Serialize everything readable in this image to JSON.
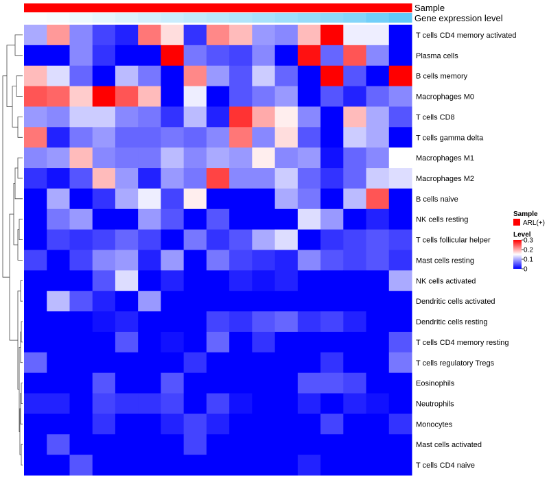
{
  "chart_data": {
    "type": "heatmap",
    "title": "",
    "annotations": [
      {
        "name": "Sample",
        "kind": "categorical"
      },
      {
        "name": "Gene expression level",
        "kind": "gradient"
      }
    ],
    "colors": {
      "low": "#0000ff",
      "mid": "#ffffff",
      "high": "#ff0000",
      "sample": "#ff0000",
      "gene_expr_start": "#ffffff",
      "gene_expr_end": "#4fc3f7",
      "dendrogram": "#444444"
    },
    "rows": [
      "T cells CD4 memory activated",
      "Plasma cells",
      "B cells memory",
      "Macrophages M0",
      "T cells CD8",
      "T cells gamma delta",
      "Macrophages M1",
      "Macrophages M2",
      "B cells naive",
      "NK cells resting",
      "T cells follicular helper",
      "Mast cells resting",
      "NK cells activated",
      "Dendritic cells activated",
      "Dendritic cells resting",
      "T cells CD4 memory resting",
      "T cells regulatory  Tregs",
      "Eosinophils",
      "Neutrophils",
      "Monocytes",
      "Mast cells activated",
      "T cells CD4 naive"
    ],
    "values": [
      [
        0.1,
        0.21,
        0.08,
        0.04,
        0.02,
        0.23,
        0.17,
        0.03,
        0.22,
        0.19,
        0.09,
        0.08,
        0.19,
        0.3,
        0.14,
        0.14,
        0.0
      ],
      [
        0.0,
        0.0,
        0.08,
        0.03,
        0.0,
        0.0,
        0.3,
        0.07,
        0.05,
        0.04,
        0.08,
        0.0,
        0.29,
        0.06,
        0.25,
        0.08,
        0.0
      ],
      [
        0.19,
        0.13,
        0.06,
        0.0,
        0.11,
        0.07,
        0.0,
        0.22,
        0.09,
        0.05,
        0.12,
        0.06,
        0.0,
        0.3,
        0.05,
        0.0,
        0.3
      ],
      [
        0.25,
        0.24,
        0.18,
        0.3,
        0.25,
        0.19,
        0.0,
        0.14,
        0.0,
        0.05,
        0.07,
        0.09,
        0.0,
        0.05,
        0.02,
        0.06,
        0.08
      ],
      [
        0.09,
        0.08,
        0.12,
        0.12,
        0.08,
        0.07,
        0.03,
        0.11,
        0.02,
        0.27,
        0.2,
        0.16,
        0.08,
        0.0,
        0.19,
        0.1,
        0.05
      ],
      [
        0.23,
        0.02,
        0.07,
        0.09,
        0.06,
        0.06,
        0.07,
        0.06,
        0.08,
        0.23,
        0.08,
        0.17,
        0.05,
        0.0,
        0.12,
        0.1,
        0.0
      ],
      [
        0.08,
        0.09,
        0.19,
        0.08,
        0.07,
        0.07,
        0.11,
        0.08,
        0.1,
        0.09,
        0.16,
        0.08,
        0.09,
        0.01,
        0.06,
        0.08,
        0.15
      ],
      [
        0.03,
        0.01,
        0.05,
        0.19,
        0.09,
        0.02,
        0.09,
        0.07,
        0.26,
        0.08,
        0.08,
        0.12,
        0.06,
        0.03,
        0.06,
        0.12,
        0.13
      ],
      [
        0.0,
        0.1,
        0.0,
        0.03,
        0.1,
        0.14,
        0.04,
        0.16,
        0.0,
        0.0,
        0.0,
        0.1,
        0.07,
        0.0,
        0.11,
        0.25,
        0.0
      ],
      [
        0.0,
        0.07,
        0.09,
        0.0,
        0.0,
        0.09,
        0.05,
        0.0,
        0.05,
        0.0,
        0.0,
        0.0,
        0.13,
        0.09,
        0.0,
        0.02,
        0.0
      ],
      [
        0.0,
        0.04,
        0.03,
        0.04,
        0.06,
        0.04,
        0.0,
        0.07,
        0.03,
        0.05,
        0.1,
        0.13,
        0.0,
        0.03,
        0.04,
        0.05,
        0.04
      ],
      [
        0.04,
        0.0,
        0.04,
        0.08,
        0.09,
        0.02,
        0.09,
        0.0,
        0.07,
        0.04,
        0.03,
        0.02,
        0.08,
        0.05,
        0.04,
        0.05,
        0.03
      ],
      [
        0.0,
        0.0,
        0.0,
        0.05,
        0.13,
        0.0,
        0.02,
        0.0,
        0.0,
        0.02,
        0.01,
        0.02,
        0.0,
        0.0,
        0.0,
        0.0,
        0.1
      ],
      [
        0.0,
        0.11,
        0.05,
        0.02,
        0.0,
        0.09,
        0.0,
        0.0,
        0.0,
        0.0,
        0.0,
        0.0,
        0.0,
        0.0,
        0.0,
        0.0,
        0.0
      ],
      [
        0.0,
        0.0,
        0.0,
        0.01,
        0.02,
        0.0,
        0.0,
        0.0,
        0.04,
        0.03,
        0.05,
        0.06,
        0.03,
        0.04,
        0.02,
        0.0,
        0.0
      ],
      [
        0.0,
        0.0,
        0.0,
        0.0,
        0.05,
        0.0,
        0.01,
        0.0,
        0.06,
        0.0,
        0.03,
        0.0,
        0.0,
        0.0,
        0.0,
        0.0,
        0.05
      ],
      [
        0.06,
        0.0,
        0.0,
        0.0,
        0.0,
        0.0,
        0.0,
        0.03,
        0.0,
        0.0,
        0.0,
        0.0,
        0.0,
        0.03,
        0.0,
        0.0,
        0.07
      ],
      [
        0.0,
        0.0,
        0.0,
        0.05,
        0.0,
        0.0,
        0.05,
        0.0,
        0.0,
        0.0,
        0.0,
        0.0,
        0.05,
        0.05,
        0.04,
        0.0,
        0.0
      ],
      [
        0.02,
        0.02,
        0.0,
        0.04,
        0.03,
        0.03,
        0.04,
        0.0,
        0.04,
        0.01,
        0.0,
        0.0,
        0.02,
        0.0,
        0.02,
        0.01,
        0.0
      ],
      [
        0.0,
        0.0,
        0.0,
        0.03,
        0.0,
        0.0,
        0.02,
        0.04,
        0.02,
        0.0,
        0.0,
        0.0,
        0.0,
        0.04,
        0.0,
        0.0,
        0.03
      ],
      [
        0.0,
        0.05,
        0.0,
        0.0,
        0.0,
        0.0,
        0.0,
        0.04,
        0.0,
        0.0,
        0.0,
        0.0,
        0.0,
        0.0,
        0.0,
        0.0,
        0.0
      ],
      [
        0.0,
        0.0,
        0.05,
        0.0,
        0.0,
        0.0,
        0.0,
        0.0,
        0.0,
        0.0,
        0.0,
        0.0,
        0.02,
        0.0,
        0.0,
        0.0,
        0.0
      ]
    ],
    "gene_expression_level": [
      0.02,
      0.05,
      0.1,
      0.15,
      0.2,
      0.25,
      0.3,
      0.35,
      0.4,
      0.45,
      0.5,
      0.55,
      0.6,
      0.65,
      0.7,
      0.8,
      0.9
    ],
    "sample_group": [
      "ARL(+)",
      "ARL(+)",
      "ARL(+)",
      "ARL(+)",
      "ARL(+)",
      "ARL(+)",
      "ARL(+)",
      "ARL(+)",
      "ARL(+)",
      "ARL(+)",
      "ARL(+)",
      "ARL(+)",
      "ARL(+)",
      "ARL(+)",
      "ARL(+)",
      "ARL(+)",
      "ARL(+)"
    ],
    "color_scale": {
      "min": 0,
      "max": 0.3,
      "mid": 0.15
    },
    "legend": {
      "placement": "right",
      "sample_title": "Sample",
      "sample_entries": [
        "ARL(+)"
      ],
      "level_title": "Level",
      "level_ticks": [
        "0.3",
        "0.2",
        "0.1",
        "0"
      ],
      "level_tick_values": [
        0.3,
        0.2,
        0.1,
        0
      ]
    }
  }
}
